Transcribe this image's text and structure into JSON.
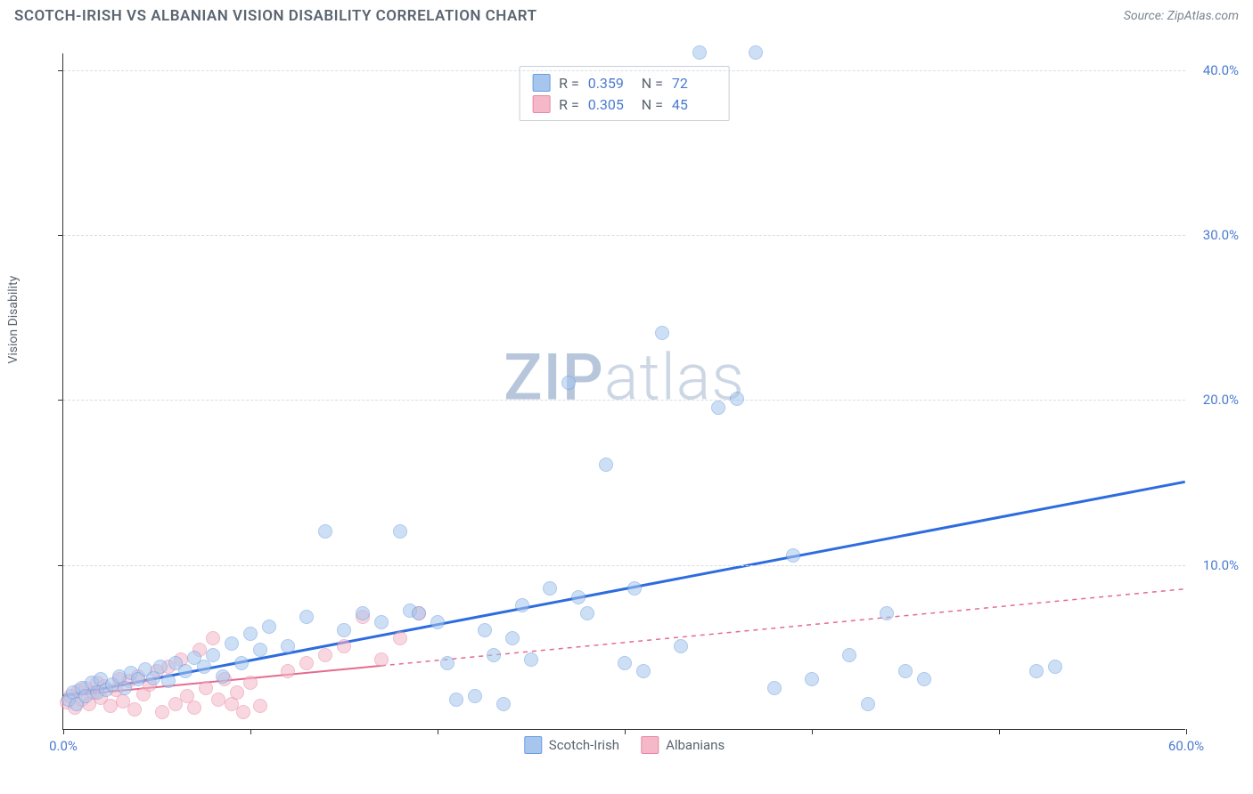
{
  "header": {
    "title": "SCOTCH-IRISH VS ALBANIAN VISION DISABILITY CORRELATION CHART",
    "source_label": "Source: ZipAtlas.com"
  },
  "axes": {
    "y_label": "Vision Disability",
    "xlim": [
      0,
      60
    ],
    "ylim": [
      0,
      41
    ],
    "x_ticks": [
      0,
      10,
      20,
      30,
      40,
      50,
      60
    ],
    "x_tick_labels": {
      "0": "0.0%",
      "60": "60.0%"
    },
    "y_ticks": [
      10,
      20,
      30,
      40
    ],
    "y_tick_labels": {
      "10": "10.0%",
      "20": "20.0%",
      "30": "30.0%",
      "40": "40.0%"
    }
  },
  "styling": {
    "grid_color": "#d8dde3",
    "axis_color": "#333333",
    "background": "#ffffff",
    "tick_label_color": "#4a7bd0",
    "title_color": "#5a6570",
    "point_radius": 8,
    "point_opacity": 0.55
  },
  "watermark": {
    "zip": "ZIP",
    "atlas": "atlas"
  },
  "series": {
    "scotch_irish": {
      "label": "Scotch-Irish",
      "color_fill": "#a6c6ee",
      "color_stroke": "#6a9de0",
      "line_color": "#2d6cdf",
      "line_width": 3,
      "line_dash": "none",
      "trend": {
        "x1": 0,
        "y1": 2.0,
        "x2": 60,
        "y2": 15.0
      },
      "solid_until_x": 19,
      "R": "0.359",
      "N": "72",
      "points": [
        [
          0.3,
          1.8
        ],
        [
          0.5,
          2.2
        ],
        [
          0.7,
          1.5
        ],
        [
          1.0,
          2.5
        ],
        [
          1.2,
          2.0
        ],
        [
          1.5,
          2.8
        ],
        [
          1.8,
          2.2
        ],
        [
          2.0,
          3.0
        ],
        [
          2.3,
          2.4
        ],
        [
          2.6,
          2.7
        ],
        [
          3.0,
          3.2
        ],
        [
          3.3,
          2.5
        ],
        [
          3.6,
          3.4
        ],
        [
          4.0,
          3.0
        ],
        [
          4.4,
          3.6
        ],
        [
          4.8,
          3.1
        ],
        [
          5.2,
          3.8
        ],
        [
          5.6,
          2.9
        ],
        [
          6.0,
          4.0
        ],
        [
          6.5,
          3.5
        ],
        [
          7.0,
          4.3
        ],
        [
          7.5,
          3.8
        ],
        [
          8.0,
          4.5
        ],
        [
          8.5,
          3.2
        ],
        [
          9.0,
          5.2
        ],
        [
          9.5,
          4.0
        ],
        [
          10.0,
          5.8
        ],
        [
          10.5,
          4.8
        ],
        [
          11.0,
          6.2
        ],
        [
          12.0,
          5.0
        ],
        [
          13.0,
          6.8
        ],
        [
          14.0,
          12.0
        ],
        [
          15.0,
          6.0
        ],
        [
          16.0,
          7.0
        ],
        [
          17.0,
          6.5
        ],
        [
          18.0,
          12.0
        ],
        [
          18.5,
          7.2
        ],
        [
          19.0,
          7.0
        ],
        [
          20.0,
          6.5
        ],
        [
          20.5,
          4.0
        ],
        [
          21.0,
          1.8
        ],
        [
          22.0,
          2.0
        ],
        [
          22.5,
          6.0
        ],
        [
          23.0,
          4.5
        ],
        [
          23.5,
          1.5
        ],
        [
          24.0,
          5.5
        ],
        [
          24.5,
          7.5
        ],
        [
          25.0,
          4.2
        ],
        [
          26.0,
          8.5
        ],
        [
          27.0,
          21.0
        ],
        [
          27.5,
          8.0
        ],
        [
          28.0,
          7.0
        ],
        [
          29.0,
          16.0
        ],
        [
          30.0,
          4.0
        ],
        [
          30.5,
          8.5
        ],
        [
          31.0,
          3.5
        ],
        [
          32.0,
          24.0
        ],
        [
          33.0,
          5.0
        ],
        [
          34.0,
          41.0
        ],
        [
          35.0,
          19.5
        ],
        [
          36.0,
          20.0
        ],
        [
          37.0,
          41.0
        ],
        [
          38.0,
          2.5
        ],
        [
          39.0,
          10.5
        ],
        [
          40.0,
          3.0
        ],
        [
          42.0,
          4.5
        ],
        [
          43.0,
          1.5
        ],
        [
          44.0,
          7.0
        ],
        [
          45.0,
          3.5
        ],
        [
          46.0,
          3.0
        ],
        [
          52.0,
          3.5
        ],
        [
          53.0,
          3.8
        ]
      ]
    },
    "albanians": {
      "label": "Albanians",
      "color_fill": "#f4b8c8",
      "color_stroke": "#e887a4",
      "line_color": "#e56b8e",
      "line_width": 2,
      "line_dash": "5,5",
      "trend": {
        "x1": 0,
        "y1": 2.0,
        "x2": 60,
        "y2": 8.5
      },
      "solid_until_x": 17,
      "R": "0.305",
      "N": "45",
      "points": [
        [
          0.2,
          1.6
        ],
        [
          0.4,
          2.0
        ],
        [
          0.6,
          1.3
        ],
        [
          0.8,
          2.3
        ],
        [
          1.0,
          1.8
        ],
        [
          1.2,
          2.5
        ],
        [
          1.4,
          1.5
        ],
        [
          1.6,
          2.2
        ],
        [
          1.8,
          2.8
        ],
        [
          2.0,
          1.9
        ],
        [
          2.2,
          2.6
        ],
        [
          2.5,
          1.4
        ],
        [
          2.8,
          2.4
        ],
        [
          3.0,
          3.0
        ],
        [
          3.2,
          1.7
        ],
        [
          3.5,
          2.9
        ],
        [
          3.8,
          1.2
        ],
        [
          4.0,
          3.2
        ],
        [
          4.3,
          2.1
        ],
        [
          4.6,
          2.7
        ],
        [
          5.0,
          3.5
        ],
        [
          5.3,
          1.0
        ],
        [
          5.6,
          3.8
        ],
        [
          6.0,
          1.5
        ],
        [
          6.3,
          4.2
        ],
        [
          6.6,
          2.0
        ],
        [
          7.0,
          1.3
        ],
        [
          7.3,
          4.8
        ],
        [
          7.6,
          2.5
        ],
        [
          8.0,
          5.5
        ],
        [
          8.3,
          1.8
        ],
        [
          8.6,
          3.0
        ],
        [
          9.0,
          1.5
        ],
        [
          9.3,
          2.2
        ],
        [
          9.6,
          1.0
        ],
        [
          10.0,
          2.8
        ],
        [
          10.5,
          1.4
        ],
        [
          12.0,
          3.5
        ],
        [
          13.0,
          4.0
        ],
        [
          14.0,
          4.5
        ],
        [
          15.0,
          5.0
        ],
        [
          16.0,
          6.8
        ],
        [
          17.0,
          4.2
        ],
        [
          18.0,
          5.5
        ],
        [
          19.0,
          7.0
        ]
      ]
    }
  },
  "legend_top_labels": {
    "R": "R =",
    "N": "N ="
  },
  "legend_bottom_order": [
    "scotch_irish",
    "albanians"
  ]
}
